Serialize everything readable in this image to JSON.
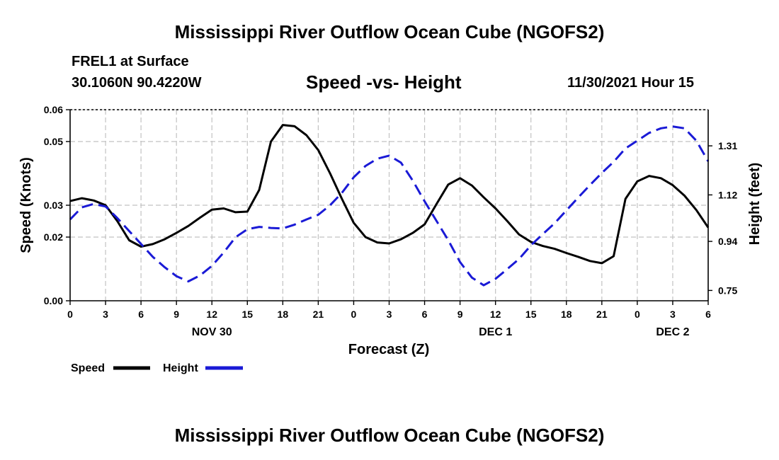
{
  "header": {
    "title": "Mississippi River Outflow Ocean Cube (NGOFS2)",
    "station": "FREL1 at Surface",
    "coordinates": "30.1060N  90.4220W",
    "datetime": "11/30/2021 Hour 15"
  },
  "footer": {
    "title": "Mississippi River Outflow Ocean Cube (NGOFS2)"
  },
  "chart_data": {
    "type": "line",
    "title": "Speed -vs- Height",
    "xlabel": "Forecast (Z)",
    "ylabel": "Speed (Knots)",
    "y2label": "Height (feet)",
    "grid": true,
    "xlim": [
      0,
      54
    ],
    "ylim": [
      0,
      0.06
    ],
    "y2lim": [
      0.71,
      1.45
    ],
    "x_ticks": [
      {
        "x": 0,
        "label": "0"
      },
      {
        "x": 3,
        "label": "3"
      },
      {
        "x": 6,
        "label": "6"
      },
      {
        "x": 9,
        "label": "9"
      },
      {
        "x": 12,
        "label": "12"
      },
      {
        "x": 15,
        "label": "15"
      },
      {
        "x": 18,
        "label": "18"
      },
      {
        "x": 21,
        "label": "21"
      },
      {
        "x": 24,
        "label": "0"
      },
      {
        "x": 27,
        "label": "3"
      },
      {
        "x": 30,
        "label": "6"
      },
      {
        "x": 33,
        "label": "9"
      },
      {
        "x": 36,
        "label": "12"
      },
      {
        "x": 39,
        "label": "15"
      },
      {
        "x": 42,
        "label": "18"
      },
      {
        "x": 45,
        "label": "21"
      },
      {
        "x": 48,
        "label": "0"
      },
      {
        "x": 51,
        "label": "3"
      },
      {
        "x": 54,
        "label": "6"
      }
    ],
    "day_labels": [
      {
        "x": 12,
        "label": "NOV 30"
      },
      {
        "x": 36,
        "label": "DEC 1"
      },
      {
        "x": 51,
        "label": "DEC 2"
      }
    ],
    "y_ticks": [
      {
        "v": 0.0,
        "label": "0.00"
      },
      {
        "v": 0.02,
        "label": "0.02"
      },
      {
        "v": 0.03,
        "label": "0.03"
      },
      {
        "v": 0.05,
        "label": "0.05"
      },
      {
        "v": 0.06,
        "label": "0.06"
      }
    ],
    "y2_ticks": [
      {
        "v": 0.75,
        "label": "0.75"
      },
      {
        "v": 0.94,
        "label": "0.94"
      },
      {
        "v": 1.12,
        "label": "1.12"
      },
      {
        "v": 1.31,
        "label": "1.31"
      }
    ],
    "series": [
      {
        "name": "Speed",
        "axis": "left",
        "color": "#000000",
        "dash": "solid",
        "points": [
          [
            0,
            0.0313
          ],
          [
            1,
            0.0322
          ],
          [
            2,
            0.0315
          ],
          [
            3,
            0.03
          ],
          [
            4,
            0.025
          ],
          [
            5,
            0.019
          ],
          [
            6,
            0.017
          ],
          [
            7,
            0.0178
          ],
          [
            8,
            0.0193
          ],
          [
            9,
            0.0213
          ],
          [
            10,
            0.0235
          ],
          [
            11,
            0.0261
          ],
          [
            12,
            0.0286
          ],
          [
            13,
            0.029
          ],
          [
            14,
            0.0278
          ],
          [
            15,
            0.028
          ],
          [
            16,
            0.0348
          ],
          [
            17,
            0.05
          ],
          [
            18,
            0.0552
          ],
          [
            19,
            0.0548
          ],
          [
            20,
            0.052
          ],
          [
            21,
            0.0473
          ],
          [
            22,
            0.04
          ],
          [
            23,
            0.032
          ],
          [
            24,
            0.0245
          ],
          [
            25,
            0.02
          ],
          [
            26,
            0.0183
          ],
          [
            27,
            0.018
          ],
          [
            28,
            0.0193
          ],
          [
            29,
            0.0213
          ],
          [
            30,
            0.024
          ],
          [
            31,
            0.0303
          ],
          [
            32,
            0.0365
          ],
          [
            33,
            0.0385
          ],
          [
            34,
            0.0362
          ],
          [
            35,
            0.0325
          ],
          [
            36,
            0.029
          ],
          [
            37,
            0.025
          ],
          [
            38,
            0.0208
          ],
          [
            39,
            0.0185
          ],
          [
            40,
            0.0172
          ],
          [
            41,
            0.0163
          ],
          [
            42,
            0.015
          ],
          [
            43,
            0.0138
          ],
          [
            44,
            0.0125
          ],
          [
            45,
            0.0118
          ],
          [
            46,
            0.014
          ],
          [
            47,
            0.032
          ],
          [
            48,
            0.0375
          ],
          [
            49,
            0.0392
          ],
          [
            50,
            0.0385
          ],
          [
            51,
            0.0363
          ],
          [
            52,
            0.033
          ],
          [
            53,
            0.0285
          ],
          [
            54,
            0.023
          ]
        ]
      },
      {
        "name": "Height",
        "axis": "right",
        "color": "#1a1ad6",
        "dash": "dashed",
        "points": [
          [
            0,
            1.025
          ],
          [
            1,
            1.072
          ],
          [
            2,
            1.085
          ],
          [
            3,
            1.075
          ],
          [
            4,
            1.03
          ],
          [
            5,
            0.98
          ],
          [
            6,
            0.93
          ],
          [
            7,
            0.88
          ],
          [
            8,
            0.84
          ],
          [
            9,
            0.805
          ],
          [
            10,
            0.785
          ],
          [
            11,
            0.808
          ],
          [
            12,
            0.845
          ],
          [
            13,
            0.897
          ],
          [
            14,
            0.956
          ],
          [
            15,
            0.987
          ],
          [
            16,
            0.996
          ],
          [
            17,
            0.992
          ],
          [
            18,
            0.99
          ],
          [
            19,
            1.005
          ],
          [
            20,
            1.025
          ],
          [
            21,
            1.043
          ],
          [
            22,
            1.08
          ],
          [
            23,
            1.128
          ],
          [
            24,
            1.188
          ],
          [
            25,
            1.232
          ],
          [
            26,
            1.26
          ],
          [
            27,
            1.272
          ],
          [
            28,
            1.245
          ],
          [
            29,
            1.175
          ],
          [
            30,
            1.095
          ],
          [
            31,
            1.02
          ],
          [
            32,
            0.945
          ],
          [
            33,
            0.86
          ],
          [
            34,
            0.8
          ],
          [
            35,
            0.77
          ],
          [
            36,
            0.795
          ],
          [
            37,
            0.833
          ],
          [
            38,
            0.872
          ],
          [
            39,
            0.925
          ],
          [
            40,
            0.968
          ],
          [
            41,
            1.01
          ],
          [
            42,
            1.06
          ],
          [
            43,
            1.11
          ],
          [
            44,
            1.158
          ],
          [
            45,
            1.205
          ],
          [
            46,
            1.248
          ],
          [
            47,
            1.3
          ],
          [
            48,
            1.33
          ],
          [
            49,
            1.36
          ],
          [
            50,
            1.378
          ],
          [
            51,
            1.385
          ],
          [
            52,
            1.378
          ],
          [
            53,
            1.33
          ],
          [
            54,
            1.25
          ]
        ]
      }
    ]
  },
  "legend": {
    "items": [
      {
        "label": "Speed",
        "color": "#000000",
        "dash": "solid"
      },
      {
        "label": "Height",
        "color": "#1a1ad6",
        "dash": "dashed"
      }
    ]
  }
}
